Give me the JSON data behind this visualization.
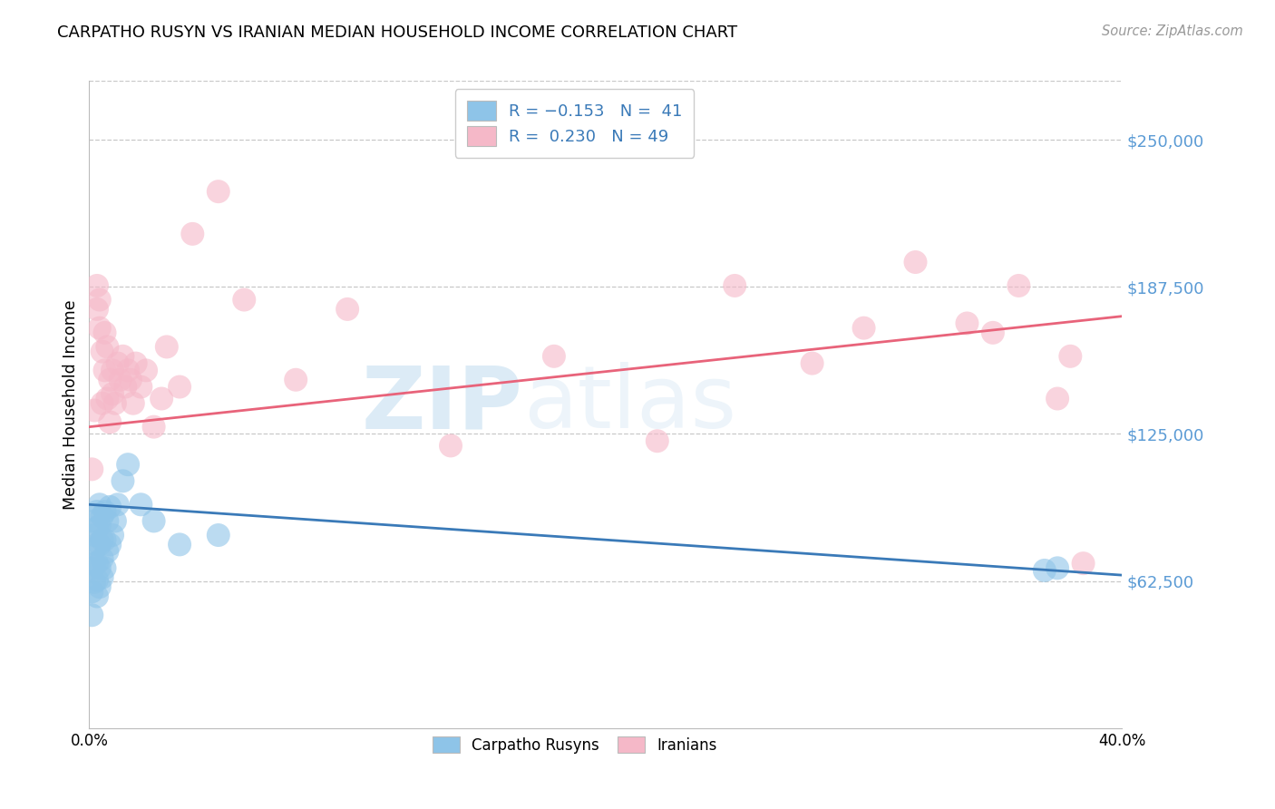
{
  "title": "CARPATHO RUSYN VS IRANIAN MEDIAN HOUSEHOLD INCOME CORRELATION CHART",
  "source": "Source: ZipAtlas.com",
  "ylabel": "Median Household Income",
  "ytick_labels": [
    "$62,500",
    "$125,000",
    "$187,500",
    "$250,000"
  ],
  "ytick_values": [
    62500,
    125000,
    187500,
    250000
  ],
  "ymin": 0,
  "ymax": 275000,
  "xmin": 0.0,
  "xmax": 0.4,
  "color_blue": "#8ec4e8",
  "color_pink": "#f5b8c8",
  "color_blue_line": "#3a7ab8",
  "color_pink_line": "#e8637a",
  "color_ytick": "#5b9bd5",
  "watermark_zip": "ZIP",
  "watermark_atlas": "atlas",
  "blue_points_x": [
    0.001,
    0.001,
    0.001,
    0.002,
    0.002,
    0.002,
    0.002,
    0.002,
    0.003,
    0.003,
    0.003,
    0.003,
    0.003,
    0.003,
    0.004,
    0.004,
    0.004,
    0.004,
    0.004,
    0.005,
    0.005,
    0.005,
    0.005,
    0.006,
    0.006,
    0.006,
    0.007,
    0.007,
    0.008,
    0.008,
    0.009,
    0.01,
    0.011,
    0.013,
    0.015,
    0.02,
    0.025,
    0.035,
    0.05,
    0.37,
    0.375
  ],
  "blue_points_y": [
    48000,
    58000,
    68000,
    62000,
    70000,
    76000,
    82000,
    88000,
    56000,
    63000,
    70000,
    78000,
    85000,
    92000,
    60000,
    68000,
    78000,
    86000,
    95000,
    64000,
    72000,
    80000,
    90000,
    68000,
    80000,
    92000,
    75000,
    88000,
    78000,
    94000,
    82000,
    88000,
    95000,
    105000,
    112000,
    95000,
    88000,
    78000,
    82000,
    67000,
    68000
  ],
  "pink_points_x": [
    0.001,
    0.002,
    0.003,
    0.003,
    0.004,
    0.004,
    0.005,
    0.005,
    0.006,
    0.006,
    0.007,
    0.007,
    0.008,
    0.008,
    0.009,
    0.009,
    0.01,
    0.011,
    0.012,
    0.013,
    0.014,
    0.015,
    0.016,
    0.017,
    0.018,
    0.02,
    0.022,
    0.025,
    0.028,
    0.03,
    0.035,
    0.04,
    0.05,
    0.06,
    0.08,
    0.1,
    0.14,
    0.18,
    0.22,
    0.25,
    0.28,
    0.3,
    0.32,
    0.34,
    0.35,
    0.36,
    0.375,
    0.38,
    0.385
  ],
  "pink_points_y": [
    110000,
    135000,
    178000,
    188000,
    170000,
    182000,
    138000,
    160000,
    152000,
    168000,
    140000,
    162000,
    130000,
    148000,
    142000,
    152000,
    138000,
    155000,
    148000,
    158000,
    145000,
    152000,
    148000,
    138000,
    155000,
    145000,
    152000,
    128000,
    140000,
    162000,
    145000,
    210000,
    228000,
    182000,
    148000,
    178000,
    120000,
    158000,
    122000,
    188000,
    155000,
    170000,
    198000,
    172000,
    168000,
    188000,
    140000,
    158000,
    70000
  ]
}
